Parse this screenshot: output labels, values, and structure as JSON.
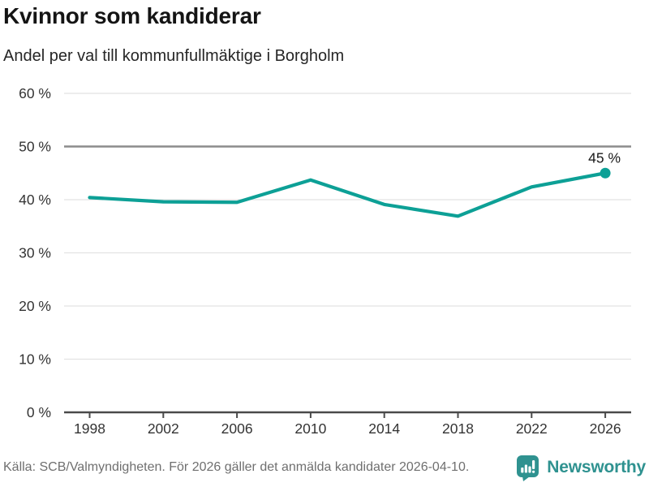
{
  "chart_data": {
    "type": "line",
    "title": "Kvinnor som kandiderar",
    "subtitle": "Andel per val till kommunfullmäktige i Borgholm",
    "x": [
      1998,
      2002,
      2006,
      2010,
      2014,
      2018,
      2022,
      2026
    ],
    "series": [
      {
        "values": [
          40.4,
          39.6,
          39.5,
          43.7,
          39.1,
          36.9,
          42.4,
          45
        ]
      }
    ],
    "ylim": [
      0,
      60
    ],
    "ytick_step": 10,
    "ytick_suffix": " %",
    "reference_line": 50,
    "grid": true,
    "legend": "none",
    "end_label": "45 %",
    "line_color": "#0da096",
    "grid_color": "#e2e2e2",
    "reference_line_color": "#8c8c8c",
    "axis_color": "#4a4a4a",
    "tick_label_color": "#333333"
  },
  "footer": {
    "source": "Källa: SCB/Valmyndigheten. För 2026 gäller det anmälda kandidater 2026-04-10.",
    "brand": "Newsworthy",
    "brand_color": "#2f9290"
  }
}
